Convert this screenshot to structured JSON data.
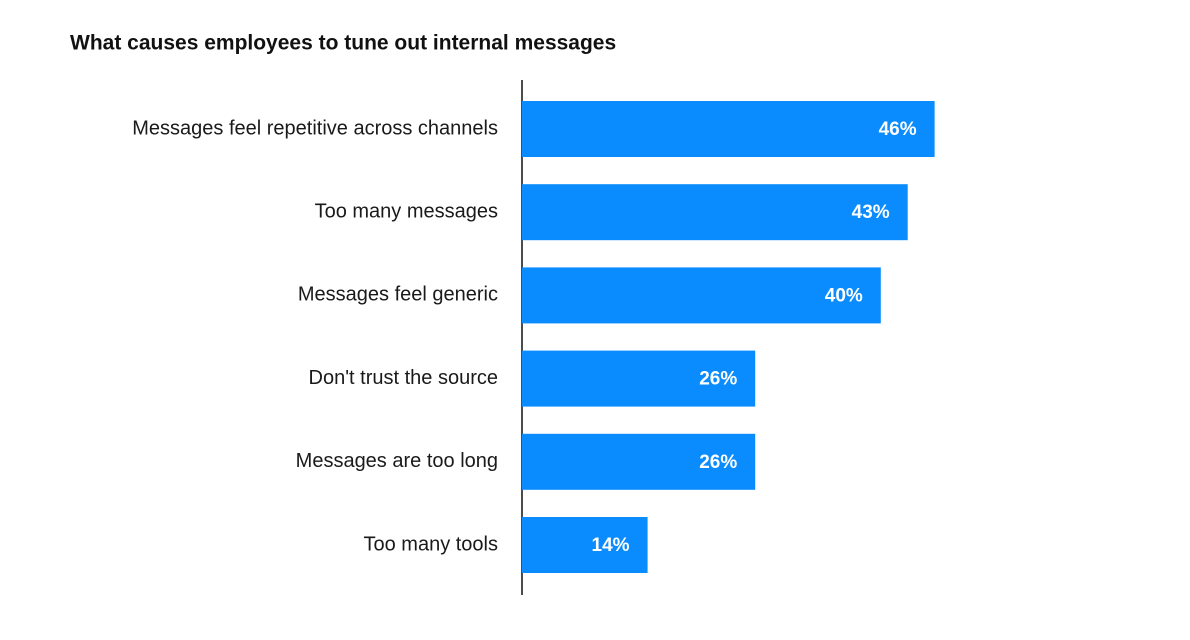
{
  "chart_data": {
    "type": "bar",
    "orientation": "horizontal",
    "title": "What causes employees to tune out internal messages",
    "categories": [
      "Messages feel repetitive across channels",
      "Too many messages",
      "Messages feel generic",
      "Don't trust the source",
      "Messages are too long",
      "Too many tools"
    ],
    "values": [
      46,
      43,
      40,
      26,
      26,
      14
    ],
    "value_labels": [
      "46%",
      "43%",
      "40%",
      "26%",
      "26%",
      "14%"
    ],
    "color": "#0a8cff"
  }
}
